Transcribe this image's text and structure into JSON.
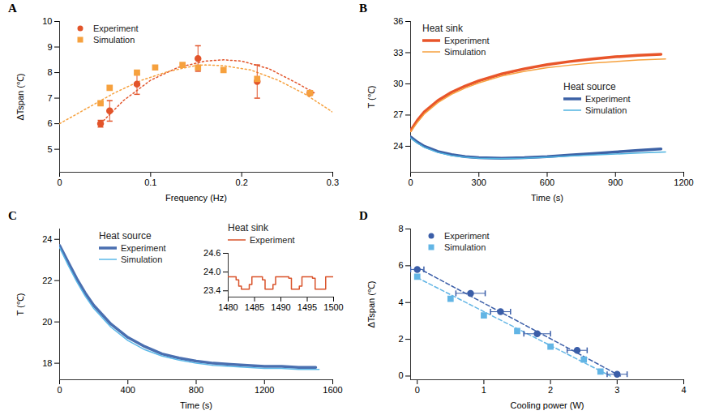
{
  "chart_data": [
    {
      "type": "scatter",
      "title": "A",
      "x_label": "Frequency (Hz)",
      "y_label": "ΔTspan (℃)",
      "xlim": [
        0,
        0.3
      ],
      "xticks": [
        0,
        0.1,
        0.2,
        0.3
      ],
      "ylim": [
        4.1,
        10
      ],
      "yticks": [
        5,
        6,
        7,
        8,
        9,
        10
      ],
      "legend": "top-left",
      "series": [
        {
          "name": "Experiment",
          "color": "#e2542a",
          "marker": "circle",
          "x": [
            0.045,
            0.055,
            0.085,
            0.152,
            0.217,
            0.275
          ],
          "values": [
            6.0,
            6.5,
            7.55,
            8.55,
            7.65,
            7.2
          ],
          "yerr": [
            0.13,
            0.4,
            0.4,
            0.5,
            0.65,
            0.03
          ]
        },
        {
          "name": "Simulation",
          "color": "#f6a13e",
          "marker": "square",
          "x": [
            0.045,
            0.055,
            0.085,
            0.105,
            0.135,
            0.152,
            0.18,
            0.217,
            0.275
          ],
          "values": [
            6.8,
            7.4,
            8.0,
            8.2,
            8.3,
            8.2,
            8.1,
            7.75,
            7.2
          ]
        }
      ],
      "fits": [
        {
          "color": "#e2542a",
          "line_style": "dotted",
          "x": [
            0.045,
            0.07,
            0.1,
            0.13,
            0.16,
            0.18,
            0.2,
            0.23,
            0.26,
            0.28
          ],
          "values": [
            6.0,
            6.9,
            7.7,
            8.2,
            8.45,
            8.5,
            8.45,
            8.15,
            7.6,
            7.2
          ]
        },
        {
          "color": "#f6a13e",
          "line_style": "dotted",
          "x": [
            0,
            0.03,
            0.06,
            0.09,
            0.12,
            0.15,
            0.16,
            0.18,
            0.21,
            0.24,
            0.27,
            0.3
          ],
          "values": [
            6.0,
            6.6,
            7.2,
            7.7,
            8.05,
            8.28,
            8.3,
            8.27,
            8.1,
            7.7,
            7.15,
            6.45
          ]
        }
      ]
    },
    {
      "type": "line",
      "title": "B",
      "x_label": "Time (s)",
      "y_label": "T (℃)",
      "xlim": [
        0,
        1200
      ],
      "xticks": [
        0,
        300,
        600,
        900,
        1200
      ],
      "ylim": [
        21.5,
        36
      ],
      "yticks": [
        24,
        27,
        30,
        33,
        36
      ],
      "groups": [
        {
          "name": "Heat sink",
          "legend": "top-left",
          "series": [
            {
              "name": "Experiment",
              "color": "#e8552a",
              "line_style": "thick",
              "x": [
                0,
                30,
                60,
                120,
                180,
                240,
                300,
                400,
                500,
                600,
                700,
                800,
                900,
                1000,
                1100
              ],
              "values": [
                25.5,
                26.5,
                27.3,
                28.4,
                29.2,
                29.8,
                30.3,
                30.95,
                31.45,
                31.85,
                32.15,
                32.4,
                32.6,
                32.75,
                32.85
              ]
            },
            {
              "name": "Simulation",
              "color": "#f6a13e",
              "line_style": "solid",
              "x": [
                0,
                30,
                60,
                120,
                180,
                240,
                300,
                400,
                500,
                600,
                700,
                800,
                900,
                1000,
                1120
              ],
              "values": [
                25.4,
                26.3,
                27.1,
                28.2,
                29.0,
                29.6,
                30.1,
                30.75,
                31.2,
                31.55,
                31.8,
                32.0,
                32.15,
                32.3,
                32.4
              ]
            }
          ]
        },
        {
          "name": "Heat source",
          "legend": "center-right",
          "series": [
            {
              "name": "Experiment",
              "color": "#3d62a6",
              "line_style": "thick",
              "x": [
                0,
                30,
                60,
                120,
                180,
                240,
                300,
                400,
                500,
                600,
                700,
                800,
                900,
                1000,
                1100
              ],
              "values": [
                24.9,
                24.4,
                24.0,
                23.5,
                23.2,
                23.0,
                22.9,
                22.85,
                22.9,
                23.0,
                23.15,
                23.3,
                23.45,
                23.6,
                23.75
              ]
            },
            {
              "name": "Simulation",
              "color": "#4fb3e0",
              "line_style": "solid",
              "x": [
                0,
                30,
                60,
                120,
                180,
                240,
                300,
                400,
                500,
                600,
                700,
                800,
                900,
                1000,
                1120
              ],
              "values": [
                24.8,
                24.3,
                23.9,
                23.4,
                23.1,
                22.95,
                22.85,
                22.8,
                22.85,
                22.95,
                23.05,
                23.15,
                23.25,
                23.35,
                23.45
              ]
            }
          ]
        }
      ]
    },
    {
      "type": "line",
      "title": "C",
      "x_label": "Time (s)",
      "y_label": "T (℃)",
      "xlim": [
        0,
        1600
      ],
      "xticks": [
        0,
        400,
        800,
        1200,
        1600
      ],
      "ylim": [
        17.2,
        24.5
      ],
      "yticks": [
        18,
        20,
        22,
        24
      ],
      "groups": [
        {
          "name": "Heat source",
          "legend": "top-center",
          "series": [
            {
              "name": "Experiment",
              "color": "#4a6fb0",
              "line_style": "thick",
              "x": [
                0,
                50,
                100,
                150,
                200,
                300,
                400,
                500,
                600,
                700,
                800,
                900,
                1000,
                1100,
                1200,
                1300,
                1400,
                1500
              ],
              "values": [
                23.7,
                22.9,
                22.1,
                21.4,
                20.8,
                19.9,
                19.25,
                18.8,
                18.45,
                18.25,
                18.1,
                18.0,
                17.95,
                17.9,
                17.85,
                17.85,
                17.8,
                17.8
              ]
            },
            {
              "name": "Simulation",
              "color": "#5bb8e8",
              "line_style": "solid",
              "x": [
                0,
                50,
                100,
                150,
                200,
                300,
                400,
                500,
                600,
                700,
                800,
                900,
                1000,
                1100,
                1200,
                1300,
                1400,
                1520
              ],
              "values": [
                23.6,
                22.75,
                21.95,
                21.25,
                20.65,
                19.75,
                19.1,
                18.65,
                18.35,
                18.15,
                18.0,
                17.9,
                17.85,
                17.8,
                17.75,
                17.75,
                17.7,
                17.7
              ]
            }
          ]
        }
      ],
      "inset": {
        "type": "line",
        "xlim": [
          1480,
          1500
        ],
        "xticks": [
          1480,
          1485,
          1490,
          1495,
          1500
        ],
        "ylim": [
          23.2,
          24.6
        ],
        "yticks": [
          23.4,
          {
            "value": 24,
            "label": "24.0"
          },
          24.6
        ],
        "groups": [
          {
            "name": "Heat sink",
            "legend": "top-left",
            "series": [
              {
                "name": "Experiment",
                "color": "#d9532b",
                "line_style": "steps",
                "x": [
                  1480,
                  1481.5,
                  1482,
                  1482.5,
                  1484,
                  1484.5,
                  1486.5,
                  1487,
                  1488.5,
                  1489,
                  1491.5,
                  1492,
                  1493.5,
                  1494,
                  1496,
                  1496.5,
                  1498,
                  1498.5,
                  1500
                ],
                "values": [
                  23.85,
                  23.75,
                  23.55,
                  23.45,
                  23.6,
                  23.85,
                  23.75,
                  23.45,
                  23.6,
                  23.85,
                  23.8,
                  23.45,
                  23.55,
                  23.85,
                  23.8,
                  23.45,
                  23.45,
                  23.85,
                  23.85
                ]
              }
            ]
          }
        ]
      }
    },
    {
      "type": "scatter",
      "title": "D",
      "x_label": "Cooling power (W)",
      "y_label": "ΔTspan (℃)",
      "xlim": [
        -0.1,
        4
      ],
      "xticks": [
        0,
        1,
        2,
        3,
        4
      ],
      "ylim": [
        -0.2,
        8
      ],
      "yticks": [
        0,
        2,
        4,
        6,
        8
      ],
      "legend": "top-left",
      "series": [
        {
          "name": "Experiment",
          "color": "#3b5ea8",
          "marker": "circle",
          "x": [
            0,
            0.8,
            1.25,
            1.8,
            2.4,
            3.0
          ],
          "values": [
            5.8,
            4.5,
            3.5,
            2.3,
            1.4,
            0.1
          ],
          "xerr": [
            0.1,
            0.22,
            0.15,
            0.2,
            0.15,
            0.15
          ]
        },
        {
          "name": "Simulation",
          "color": "#62b5e5",
          "marker": "square",
          "x": [
            0,
            0.5,
            1.0,
            1.5,
            2.0,
            2.5,
            2.75
          ],
          "values": [
            5.4,
            4.2,
            3.3,
            2.45,
            1.6,
            0.9,
            0.25
          ]
        }
      ],
      "fits": [
        {
          "color": "#3b5ea8",
          "line_style": "dashed",
          "x": [
            0,
            3.05
          ],
          "values": [
            5.9,
            0
          ]
        },
        {
          "color": "#62b5e5",
          "line_style": "dashed",
          "x": [
            0,
            2.9
          ],
          "values": [
            5.35,
            0
          ]
        }
      ]
    }
  ]
}
